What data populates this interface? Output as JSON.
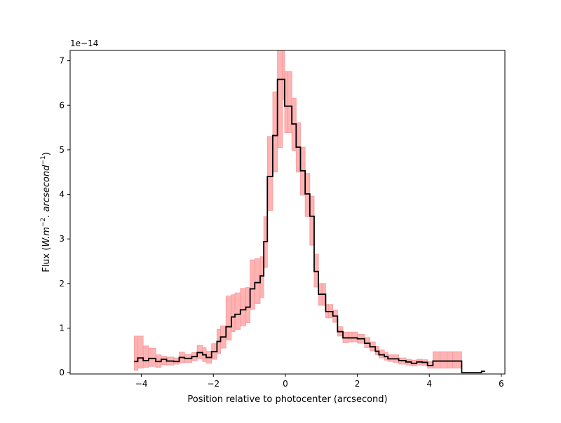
{
  "chart_data": {
    "type": "line",
    "title": "",
    "xlabel": "Position relative to photocenter (arcsecond)",
    "ylabel": {
      "prefix": "Flux (",
      "math": "W.m",
      "exp1": "−2",
      "middle": ". arcsecond",
      "exp2": "−1",
      "suffix": ")"
    },
    "offset_text": "1e−14",
    "xlim": [
      -5.98,
      6.1
    ],
    "ylim": [
      -0.03,
      7.23
    ],
    "x_ticks": [
      -4,
      -2,
      0,
      2,
      4,
      6
    ],
    "x_tick_labels": [
      "−4",
      "−2",
      "0",
      "2",
      "4",
      "6"
    ],
    "y_ticks": [
      0,
      1,
      2,
      3,
      4,
      5,
      6,
      7
    ],
    "y_tick_labels": [
      "0",
      "1",
      "2",
      "3",
      "4",
      "5",
      "6",
      "7"
    ],
    "grid": false,
    "colors": {
      "line": "#000000",
      "band_fill": "#ffb3b3",
      "band_edge": "#f49a9a"
    },
    "series": [
      {
        "style": "steps-post",
        "x": [
          -4.2,
          -4.1,
          -3.95,
          -3.8,
          -3.6,
          -3.45,
          -3.3,
          -3.1,
          -2.95,
          -2.8,
          -2.6,
          -2.45,
          -2.3,
          -2.2,
          -2.05,
          -1.9,
          -1.8,
          -1.65,
          -1.5,
          -1.4,
          -1.25,
          -1.1,
          -0.98,
          -0.85,
          -0.7,
          -0.6,
          -0.5,
          -0.35,
          -0.22,
          -0.08,
          -0.02,
          0.06,
          0.18,
          0.3,
          0.42,
          0.55,
          0.68,
          0.8,
          0.92,
          1.02,
          1.12,
          1.2,
          1.32,
          1.45,
          1.6,
          1.75,
          1.85,
          2.0,
          2.2,
          2.35,
          2.5,
          2.6,
          2.75,
          2.85,
          3.0,
          3.15,
          3.35,
          3.5,
          3.65,
          3.8,
          3.95,
          4.1,
          4.3,
          4.5,
          4.65,
          4.9,
          5.45,
          5.55
        ],
        "y": [
          0.25,
          0.33,
          0.27,
          0.32,
          0.25,
          0.3,
          0.26,
          0.25,
          0.34,
          0.32,
          0.36,
          0.45,
          0.4,
          0.34,
          0.47,
          0.7,
          0.8,
          1.03,
          1.25,
          1.31,
          1.41,
          1.47,
          1.88,
          2.02,
          2.17,
          2.94,
          4.4,
          5.32,
          6.58,
          6.58,
          5.98,
          5.98,
          5.58,
          5.06,
          4.53,
          4.01,
          3.51,
          2.27,
          1.76,
          1.76,
          1.37,
          1.37,
          1.27,
          0.92,
          0.78,
          0.78,
          0.78,
          0.76,
          0.66,
          0.58,
          0.48,
          0.4,
          0.36,
          0.31,
          0.31,
          0.27,
          0.24,
          0.21,
          0.24,
          0.23,
          0.16,
          0.26,
          0.26,
          0.26,
          0.26,
          0.0,
          0.03,
          0.03
        ]
      }
    ],
    "band": {
      "x": [
        -4.2,
        -4.1,
        -3.95,
        -3.8,
        -3.6,
        -3.45,
        -3.3,
        -3.1,
        -2.95,
        -2.8,
        -2.6,
        -2.45,
        -2.3,
        -2.2,
        -2.05,
        -1.9,
        -1.8,
        -1.65,
        -1.5,
        -1.4,
        -1.25,
        -1.1,
        -0.98,
        -0.85,
        -0.7,
        -0.6,
        -0.5,
        -0.35,
        -0.22,
        -0.08,
        -0.02,
        0.06,
        0.18,
        0.3,
        0.42,
        0.55,
        0.68,
        0.8,
        0.92,
        1.02,
        1.12,
        1.2,
        1.32,
        1.45,
        1.6,
        1.75,
        1.85,
        2.0,
        2.2,
        2.35,
        2.5,
        2.6,
        2.75,
        2.85,
        3.0,
        3.15,
        3.35,
        3.5,
        3.65,
        3.8,
        3.95,
        4.1,
        4.3,
        4.5,
        4.65,
        4.9
      ],
      "lower": [
        0.05,
        0.1,
        0.12,
        0.14,
        0.12,
        0.18,
        0.17,
        0.19,
        0.22,
        0.23,
        0.27,
        0.31,
        0.25,
        0.21,
        0.3,
        0.43,
        0.55,
        0.73,
        0.92,
        0.97,
        1.05,
        1.12,
        1.42,
        1.55,
        1.68,
        2.36,
        3.64,
        4.5,
        5.05,
        6.12,
        5.38,
        5.38,
        4.98,
        4.5,
        3.98,
        3.5,
        2.86,
        1.92,
        1.51,
        1.51,
        1.23,
        1.23,
        1.13,
        0.82,
        0.67,
        0.69,
        0.69,
        0.66,
        0.56,
        0.49,
        0.4,
        0.33,
        0.28,
        0.25,
        0.23,
        0.19,
        0.17,
        0.15,
        0.17,
        0.16,
        0.1,
        0.1,
        0.1,
        0.1,
        0.1,
        0.05
      ],
      "upper": [
        0.82,
        0.82,
        0.6,
        0.55,
        0.4,
        0.37,
        0.35,
        0.33,
        0.46,
        0.41,
        0.45,
        0.61,
        0.56,
        0.48,
        0.65,
        0.97,
        1.05,
        1.72,
        1.75,
        1.79,
        1.89,
        1.91,
        2.53,
        2.56,
        2.6,
        3.5,
        5.3,
        6.3,
        7.23,
        7.23,
        6.76,
        6.76,
        6.16,
        5.61,
        5.06,
        4.47,
        3.96,
        2.66,
        2.0,
        2.0,
        1.53,
        1.53,
        1.4,
        1.03,
        0.91,
        0.91,
        0.91,
        0.86,
        0.79,
        0.69,
        0.59,
        0.51,
        0.46,
        0.4,
        0.4,
        0.33,
        0.3,
        0.28,
        0.3,
        0.29,
        0.25,
        0.47,
        0.47,
        0.47,
        0.47,
        0.47
      ]
    }
  }
}
